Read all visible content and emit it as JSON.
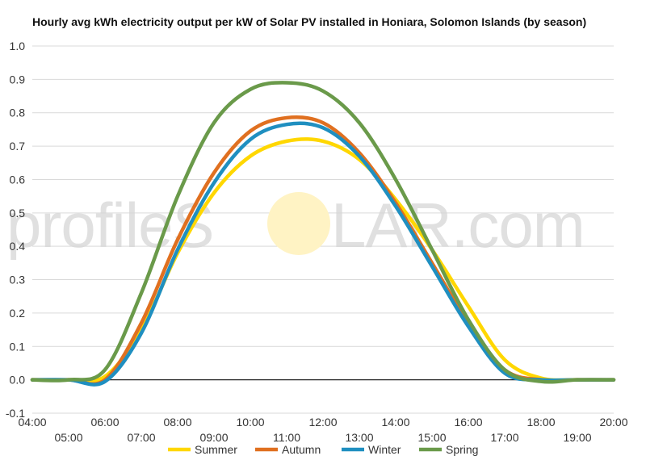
{
  "title": "Hourly avg kWh electricity output per kW of Solar PV installed in Honiara, Solomon Islands (by season)",
  "watermark": {
    "left": "profileS",
    "sun": "O",
    "right": "LAR.com",
    "sun_color": "#fff3c4"
  },
  "chart_data": {
    "type": "line",
    "title": "Hourly avg kWh electricity output per kW of Solar PV installed in Honiara, Solomon Islands (by season)",
    "xlabel": "",
    "ylabel": "",
    "x": [
      "04:00",
      "05:00",
      "06:00",
      "07:00",
      "08:00",
      "09:00",
      "10:00",
      "11:00",
      "12:00",
      "13:00",
      "14:00",
      "15:00",
      "16:00",
      "17:00",
      "18:00",
      "19:00",
      "20:00"
    ],
    "x_hours": [
      4,
      5,
      6,
      7,
      8,
      9,
      10,
      11,
      12,
      13,
      14,
      15,
      16,
      17,
      18,
      19,
      20
    ],
    "ylim": [
      -0.1,
      1.0
    ],
    "yticks": [
      "-0.1",
      "0.0",
      "0.1",
      "0.2",
      "0.3",
      "0.4",
      "0.5",
      "0.6",
      "0.7",
      "0.8",
      "0.9",
      "1.0"
    ],
    "ytick_values": [
      -0.1,
      0.0,
      0.1,
      0.2,
      0.3,
      0.4,
      0.5,
      0.6,
      0.7,
      0.8,
      0.9,
      1.0
    ],
    "grid": true,
    "legend": "bottom",
    "series": [
      {
        "name": "Summer",
        "color": "#ffd700",
        "values": [
          0.0,
          0.0,
          0.01,
          0.15,
          0.38,
          0.56,
          0.67,
          0.715,
          0.715,
          0.66,
          0.54,
          0.39,
          0.22,
          0.06,
          0.005,
          0.0,
          0.0
        ]
      },
      {
        "name": "Autumn",
        "color": "#e07020",
        "values": [
          0.0,
          0.0,
          0.0,
          0.17,
          0.42,
          0.62,
          0.745,
          0.785,
          0.77,
          0.68,
          0.53,
          0.35,
          0.17,
          0.03,
          0.0,
          0.0,
          0.0
        ]
      },
      {
        "name": "Winter",
        "color": "#1f8fc0",
        "values": [
          0.0,
          0.0,
          -0.005,
          0.14,
          0.39,
          0.59,
          0.72,
          0.765,
          0.755,
          0.67,
          0.52,
          0.34,
          0.16,
          0.02,
          0.0,
          0.0,
          0.0
        ]
      },
      {
        "name": "Spring",
        "color": "#6a9a4a",
        "values": [
          0.0,
          0.0,
          0.03,
          0.26,
          0.55,
          0.77,
          0.87,
          0.89,
          0.865,
          0.77,
          0.6,
          0.39,
          0.18,
          0.03,
          -0.005,
          0.0,
          0.0
        ]
      }
    ]
  }
}
